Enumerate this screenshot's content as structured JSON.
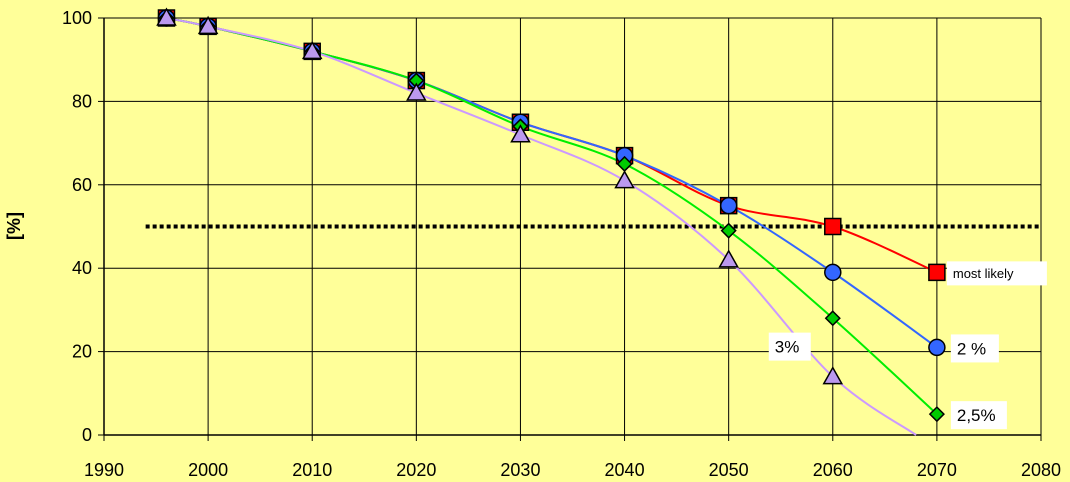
{
  "chart_data": {
    "type": "line",
    "title": "",
    "xlabel": "",
    "ylabel": "[%]",
    "xlim": [
      1990,
      2080
    ],
    "ylim": [
      0,
      100
    ],
    "x_ticks": [
      "1990",
      "2000",
      "2010",
      "2020",
      "2030",
      "2040",
      "2050",
      "2060",
      "2070",
      "2080"
    ],
    "y_ticks": [
      "0",
      "20",
      "40",
      "60",
      "80",
      "100"
    ],
    "grid": true,
    "reference_line": {
      "y": 50,
      "x_range": [
        1994,
        2080
      ],
      "style": "dotted"
    },
    "series": [
      {
        "name": "most likely",
        "color": "#ff0000",
        "marker": "square",
        "marker_color": "#ff0000",
        "x": [
          1996,
          2000,
          2010,
          2020,
          2030,
          2040,
          2050,
          2060,
          2070
        ],
        "y": [
          100,
          98,
          92,
          85,
          75,
          67,
          55,
          50,
          39
        ]
      },
      {
        "name": "2 %",
        "color": "#3366ff",
        "marker": "circle",
        "marker_color": "#3366ff",
        "x": [
          1996,
          2000,
          2010,
          2020,
          2030,
          2040,
          2050,
          2060,
          2070
        ],
        "y": [
          100,
          98,
          92,
          85,
          75,
          67,
          55,
          39,
          21
        ]
      },
      {
        "name": "2,5%",
        "color": "#00ee00",
        "marker": "diamond",
        "marker_color": "#00cc00",
        "x": [
          1996,
          2000,
          2010,
          2020,
          2030,
          2040,
          2050,
          2060,
          2070
        ],
        "y": [
          100,
          98,
          92,
          85,
          74,
          65,
          49,
          28,
          5
        ]
      },
      {
        "name": "3%",
        "color": "#cc99ff",
        "marker": "triangle",
        "marker_color": "#bb99ee",
        "x": [
          1996,
          2000,
          2010,
          2020,
          2030,
          2040,
          2050,
          2060,
          2068
        ],
        "y": [
          100,
          98,
          92,
          82,
          72,
          61,
          42,
          14,
          0
        ]
      }
    ],
    "annotations": [
      {
        "text": "most likely",
        "series": "most likely"
      },
      {
        "text": "2 %",
        "series": "2 %"
      },
      {
        "text": "2,5%",
        "series": "2,5%"
      },
      {
        "text": "3%",
        "series": "3%"
      }
    ]
  }
}
